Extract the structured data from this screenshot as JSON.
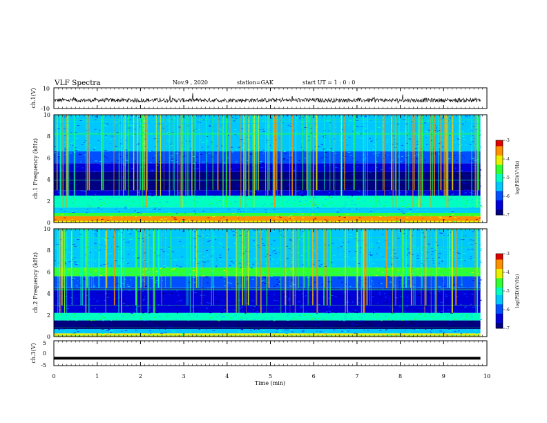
{
  "header": {
    "title": "VLF Spectra",
    "date": "Nov.9 , 2020",
    "station": "station=GAK",
    "start": "start UT = 1 : 0 : 0"
  },
  "colors": {
    "spectrogram": [
      "#000040",
      "#000080",
      "#0000d8",
      "#0050ff",
      "#00c8ff",
      "#00ffc0",
      "#30ff30",
      "#e8f000",
      "#ff9000",
      "#e00000",
      "#ffffff"
    ],
    "trace": "#000000",
    "frame": "#000000"
  },
  "chart_data": [
    {
      "type": "line",
      "panel": "ch1-waveform",
      "ylabel": "ch.1(V)",
      "ylim": [
        -10,
        10
      ],
      "yticks": [
        "10",
        "-10"
      ],
      "xlim": [
        0,
        10
      ],
      "baseline_v": -2,
      "noise_amplitude_v": 2
    },
    {
      "type": "heatmap",
      "panel": "ch1-spectrogram",
      "ylabel": "ch.1 Frequency (kHz)",
      "xlim": [
        0,
        10
      ],
      "ylim": [
        0,
        10
      ],
      "yticks": [
        "0",
        "2",
        "4",
        "6",
        "8",
        "10"
      ],
      "data_end_min": 9.85,
      "bands": [
        {
          "from_khz": 0.0,
          "to_khz": 0.15,
          "level": 7
        },
        {
          "from_khz": 0.15,
          "to_khz": 0.6,
          "level": 8
        },
        {
          "from_khz": 0.6,
          "to_khz": 0.9,
          "level": 6
        },
        {
          "from_khz": 0.9,
          "to_khz": 1.4,
          "level": 4
        },
        {
          "from_khz": 1.4,
          "to_khz": 2.5,
          "level": 5
        },
        {
          "from_khz": 2.5,
          "to_khz": 3.0,
          "level": 2
        },
        {
          "from_khz": 3.0,
          "to_khz": 4.7,
          "level": 1
        },
        {
          "from_khz": 4.7,
          "to_khz": 5.5,
          "level": 2
        },
        {
          "from_khz": 5.5,
          "to_khz": 6.6,
          "level": 3
        },
        {
          "from_khz": 6.6,
          "to_khz": 10.0,
          "level": 4
        }
      ],
      "colorbar": {
        "label": "log(PSD)(V²/Hz)",
        "range": [
          -7,
          -3
        ],
        "ticks": [
          "-3",
          "-4",
          "-5",
          "-6",
          "-7"
        ]
      }
    },
    {
      "type": "heatmap",
      "panel": "ch2-spectrogram",
      "ylabel": "ch.2 Frequency (kHz)",
      "xlim": [
        0,
        10
      ],
      "ylim": [
        0,
        10
      ],
      "yticks": [
        "0",
        "2",
        "4",
        "6",
        "8",
        "10"
      ],
      "data_end_min": 9.85,
      "bands": [
        {
          "from_khz": 0.0,
          "to_khz": 0.3,
          "level": 7
        },
        {
          "from_khz": 0.3,
          "to_khz": 0.7,
          "level": 4
        },
        {
          "from_khz": 0.7,
          "to_khz": 1.5,
          "level": 1
        },
        {
          "from_khz": 1.5,
          "to_khz": 2.2,
          "level": 5
        },
        {
          "from_khz": 2.2,
          "to_khz": 2.9,
          "level": 2
        },
        {
          "from_khz": 2.9,
          "to_khz": 4.5,
          "level": 2
        },
        {
          "from_khz": 4.5,
          "to_khz": 5.6,
          "level": 3
        },
        {
          "from_khz": 5.6,
          "to_khz": 6.4,
          "level": 6
        },
        {
          "from_khz": 6.4,
          "to_khz": 10.0,
          "level": 4
        }
      ],
      "colorbar": {
        "label": "log(PSD)(V²/Hz)",
        "range": [
          -7,
          -3
        ],
        "ticks": [
          "-3",
          "-4",
          "-5",
          "-6",
          "-7"
        ]
      }
    },
    {
      "type": "line",
      "panel": "ch3-waveform",
      "ylabel": "ch.3(V)",
      "ylim": [
        -5,
        5
      ],
      "yticks": [
        "5",
        "0",
        "-5"
      ],
      "xlim": [
        0,
        10
      ],
      "baseline_v": -2
    }
  ],
  "xaxis": {
    "label": "Time (min)",
    "ticks": [
      "0",
      "1",
      "2",
      "3",
      "4",
      "5",
      "6",
      "7",
      "8",
      "9",
      "10"
    ]
  }
}
